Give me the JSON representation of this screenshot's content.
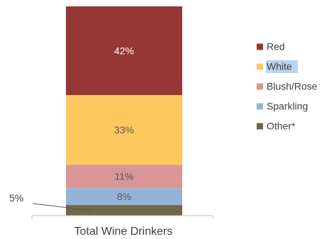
{
  "chart_data": {
    "type": "bar",
    "stacked": true,
    "orientation": "vertical",
    "categories": [
      "Total Wine Drinkers"
    ],
    "series": [
      {
        "name": "Red",
        "values": [
          42
        ],
        "label": "42%",
        "color": "#953735"
      },
      {
        "name": "White",
        "values": [
          33
        ],
        "label": "33%",
        "color": "#FFC85F"
      },
      {
        "name": "Blush/Rose",
        "values": [
          11
        ],
        "label": "11%",
        "color": "#DA9596"
      },
      {
        "name": "Sparkling",
        "values": [
          8
        ],
        "label": "8%",
        "color": "#95B3D7"
      },
      {
        "name": "Other*",
        "values": [
          5
        ],
        "label": "",
        "color": "#6F6849"
      }
    ],
    "callout": {
      "series": "Other*",
      "label": "5%"
    },
    "units": "%",
    "legend_position": "right",
    "grid": false
  },
  "colors": {
    "text": "#404040",
    "segment_label_light": "#ffffff",
    "segment_label_dark": "#595959",
    "axis": "#bfbfbf",
    "legend_highlight": "#b8d5ec"
  }
}
